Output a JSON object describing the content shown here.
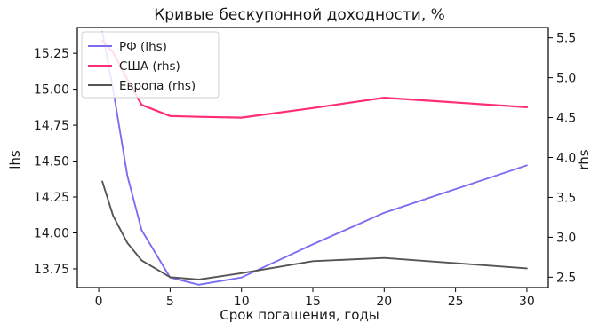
{
  "chart_data": {
    "type": "line",
    "title": "Кривые бескупонной доходности, %",
    "xlabel": "Срок погашения, годы",
    "ylabel_left": "lhs",
    "ylabel_right": "rhs",
    "x_ticks": [
      "0",
      "5",
      "10",
      "15",
      "20",
      "25",
      "30"
    ],
    "y_left_ticks": [
      "13.75",
      "14.00",
      "14.25",
      "14.50",
      "14.75",
      "15.00",
      "15.25"
    ],
    "y_right_ticks": [
      "2.5",
      "3.0",
      "3.5",
      "4.0",
      "4.5",
      "5.0",
      "5.5"
    ],
    "xlim": [
      -1.5,
      31.5
    ],
    "ylim_left": [
      13.62,
      15.43
    ],
    "ylim_right": [
      2.37,
      5.63
    ],
    "legend_position": "top-left",
    "grid": false,
    "series": [
      {
        "name": "РФ (lhs)",
        "axis": "left",
        "color": "#7b6ff0",
        "x": [
          0.25,
          1,
          2,
          3,
          5,
          7,
          10,
          15,
          20,
          30
        ],
        "y": [
          15.4,
          15.0,
          14.4,
          14.02,
          13.69,
          13.64,
          13.69,
          13.92,
          14.14,
          14.47
        ]
      },
      {
        "name": "США (rhs)",
        "axis": "right",
        "color": "#ff2d78",
        "x": [
          0.25,
          1,
          2,
          3,
          5,
          7,
          10,
          15,
          20,
          30
        ],
        "y": [
          5.46,
          5.32,
          4.98,
          4.66,
          4.52,
          4.51,
          4.5,
          4.62,
          4.75,
          4.63
        ]
      },
      {
        "name": "Европа (rhs)",
        "axis": "right",
        "color": "#555555",
        "x": [
          0.25,
          1,
          2,
          3,
          5,
          7,
          10,
          15,
          20,
          30
        ],
        "y": [
          3.7,
          3.27,
          2.93,
          2.71,
          2.5,
          2.47,
          2.55,
          2.7,
          2.74,
          2.61
        ]
      }
    ]
  }
}
